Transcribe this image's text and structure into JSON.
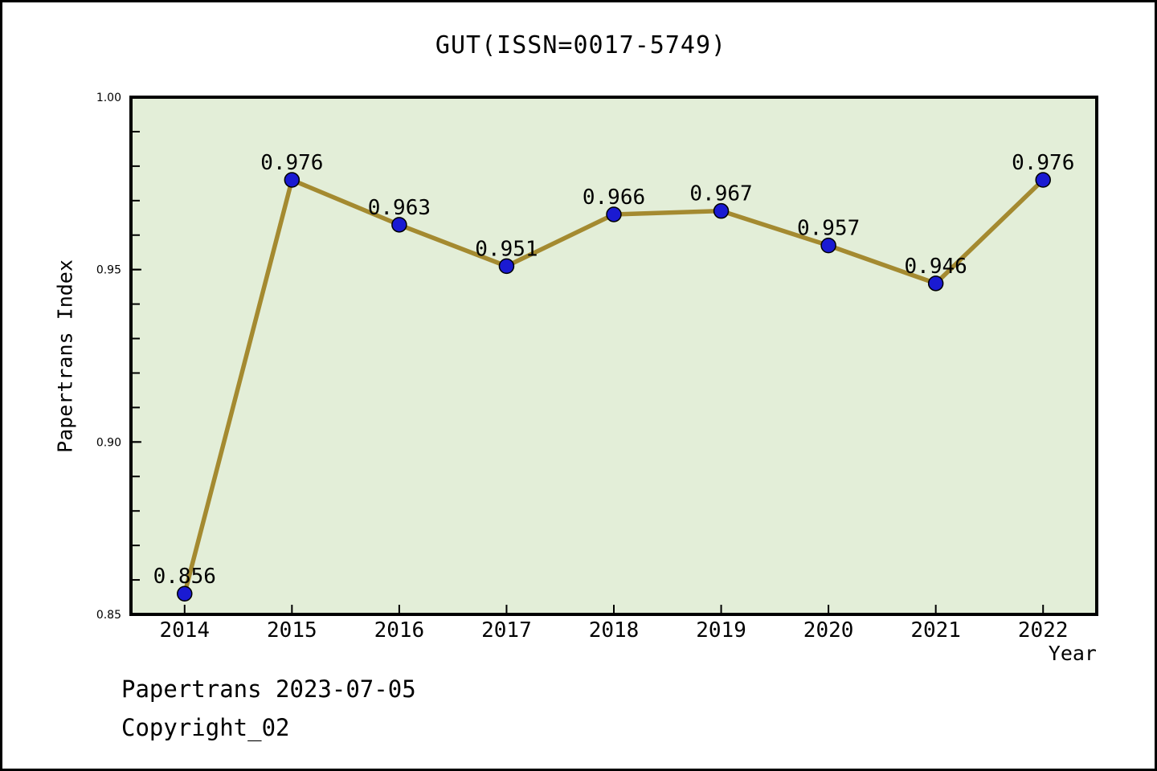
{
  "header": {
    "title": "GUT(ISSN=0017-5749)"
  },
  "axes": {
    "ylabel": "Papertrans Index",
    "xlabel": "Year"
  },
  "footer": {
    "line1": "Papertrans 2023-07-05",
    "line2": "Copyright_02"
  },
  "chart_data": {
    "type": "line",
    "title": "GUT(ISSN=0017-5749)",
    "xlabel": "Year",
    "ylabel": "Papertrans Index",
    "categories": [
      "2014",
      "2015",
      "2016",
      "2017",
      "2018",
      "2019",
      "2020",
      "2021",
      "2022"
    ],
    "values": [
      0.856,
      0.976,
      0.963,
      0.951,
      0.966,
      0.967,
      0.957,
      0.946,
      0.976
    ],
    "point_labels": [
      "0.856",
      "0.976",
      "0.963",
      "0.951",
      "0.966",
      "0.967",
      "0.957",
      "0.946",
      "0.976"
    ],
    "ylim": [
      0.85,
      1.0
    ],
    "yticks": [
      0.85,
      0.9,
      0.95,
      1.0
    ],
    "ytick_labels": [
      "0.85",
      "0.90",
      "0.95",
      "1.00"
    ],
    "minor_tick_step": 0.01,
    "grid": false,
    "legend": "none",
    "annotations": [
      "Papertrans 2023-07-05",
      "Copyright_02"
    ],
    "colors": {
      "plot_background": "#e3eed8",
      "line": "#a48a30",
      "marker_fill": "#1a1ad2",
      "marker_edge": "#000000",
      "frame": "#000000",
      "text": "#000000"
    }
  }
}
